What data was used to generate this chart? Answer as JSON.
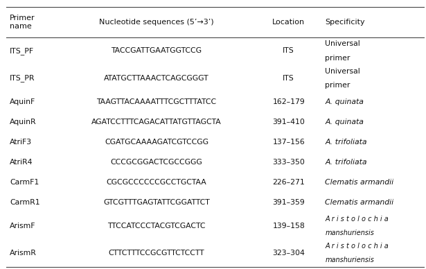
{
  "headers": [
    "Primer\nname",
    "Nucleotide sequences (5’→3’)",
    "Location",
    "Specificity"
  ],
  "rows": [
    [
      "ITS_PF",
      "TACCGATTGAATGGTCCG",
      "ITS",
      "Universal\nprimer"
    ],
    [
      "ITS_PR",
      "ATATGCTTAAACTCAGCGGGT",
      "ITS",
      "Universal\nprimer"
    ],
    [
      "AquinF",
      "TAAGTTACAAAATTTCGCTTTATCC",
      "162–179",
      "A. quinata"
    ],
    [
      "AquinR",
      "AGATCCTTTCAGACATTATGTTAGCTA",
      "391–410",
      "A. quinata"
    ],
    [
      "AtriF3",
      "CGATGCAAAAGATCGTCCGG",
      "137–156",
      "A. trifoliata"
    ],
    [
      "AtriR4",
      "CCCGCGGACTCGCCGGG",
      "333–350",
      "A. trifoliata"
    ],
    [
      "CarmF1",
      "CGCGCCCCCCGCCTGCTAA",
      "226–271",
      "Clematis armandii"
    ],
    [
      "CarmR1",
      "GTCGTTTGAGTATTCGGATTCT",
      "391–359",
      "Clematis armandii"
    ],
    [
      "ArismF",
      "TTCCATCCCTACGTCGACTC",
      "139–158",
      "Aristolochia\nmanshuriensis"
    ],
    [
      "ArismR",
      "CTTCTTTCCGCGTTCTCCTT",
      "323–304",
      "Aristolochia\nmanshuriensis"
    ]
  ],
  "italic_specificity": [
    false,
    false,
    true,
    true,
    true,
    true,
    true,
    true,
    true,
    true
  ],
  "background_color": "#ffffff",
  "text_color": "#111111",
  "fig_width": 6.15,
  "fig_height": 3.88,
  "dpi": 100
}
